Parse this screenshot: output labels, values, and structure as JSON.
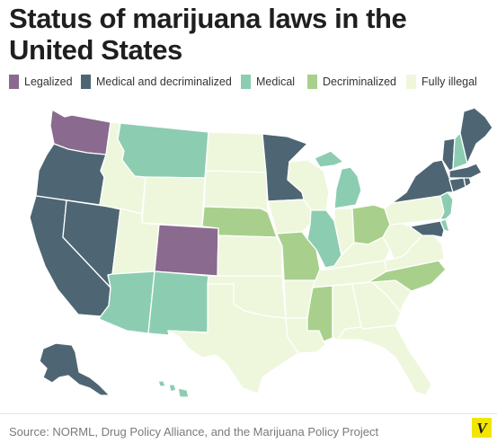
{
  "header": {
    "title_line1": "Status of marijuana laws in the",
    "title_line2": "United States"
  },
  "legend": [
    {
      "label": "Legalized",
      "color": "#8a6a8e"
    },
    {
      "label": "Medical and decriminalized",
      "color": "#4e6673"
    },
    {
      "label": "Medical",
      "color": "#8ccdb2"
    },
    {
      "label": "Decriminalized",
      "color": "#a8d08c"
    },
    {
      "label": "Fully illegal",
      "color": "#eef7dc"
    }
  ],
  "map": {
    "border_color": "#ffffff",
    "states": {
      "WA": "Legalized",
      "CO": "Legalized",
      "OR": "Medical and decriminalized",
      "CA": "Medical and decriminalized",
      "NV": "Medical and decriminalized",
      "MN": "Medical and decriminalized",
      "NY": "Medical and decriminalized",
      "VT": "Medical and decriminalized",
      "ME": "Medical and decriminalized",
      "MA": "Medical and decriminalized",
      "CT": "Medical and decriminalized",
      "RI": "Medical and decriminalized",
      "MD": "Medical and decriminalized",
      "AK": "Medical and decriminalized",
      "MT": "Medical",
      "AZ": "Medical",
      "NM": "Medical",
      "IL": "Medical",
      "MI": "Medical",
      "NH": "Medical",
      "NJ": "Medical",
      "DE": "Medical",
      "HI": "Medical",
      "NE": "Decriminalized",
      "MO": "Decriminalized",
      "OH": "Decriminalized",
      "NC": "Decriminalized",
      "MS": "Decriminalized",
      "ID": "Fully illegal",
      "WY": "Fully illegal",
      "UT": "Fully illegal",
      "ND": "Fully illegal",
      "SD": "Fully illegal",
      "KS": "Fully illegal",
      "OK": "Fully illegal",
      "TX": "Fully illegal",
      "IA": "Fully illegal",
      "WI": "Fully illegal",
      "AR": "Fully illegal",
      "LA": "Fully illegal",
      "IN": "Fully illegal",
      "KY": "Fully illegal",
      "TN": "Fully illegal",
      "AL": "Fully illegal",
      "GA": "Fully illegal",
      "FL": "Fully illegal",
      "SC": "Fully illegal",
      "VA": "Fully illegal",
      "WV": "Fully illegal",
      "PA": "Fully illegal"
    }
  },
  "footer": {
    "source": "Source: NORML, Drug Policy Alliance, and the Marijuana Policy Project",
    "logo_letter": "V",
    "logo_color": "#f2e600"
  }
}
